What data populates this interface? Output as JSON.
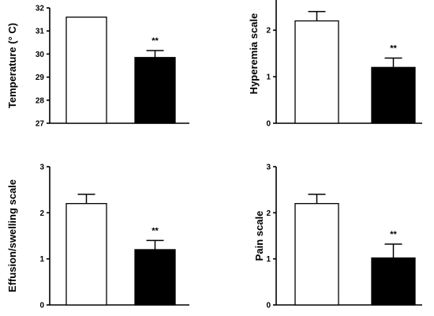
{
  "chart_data": [
    {
      "type": "bar",
      "ylabel": "Temperature (° C)",
      "ylim": [
        27,
        32
      ],
      "yticks": [
        "27",
        "28",
        "29",
        "30",
        "31",
        "32"
      ],
      "bars": [
        {
          "value": 31.6,
          "error": 0.0,
          "fill": "#ffffff",
          "sig": ""
        },
        {
          "value": 29.85,
          "error": 0.3,
          "fill": "#000000",
          "sig": "**"
        }
      ]
    },
    {
      "type": "bar",
      "ylabel": "Hyperemia scale",
      "ylim": [
        0,
        2.7
      ],
      "yticks": [
        "0",
        "1",
        "2"
      ],
      "bars": [
        {
          "value": 2.2,
          "error": 0.2,
          "fill": "#ffffff",
          "sig": ""
        },
        {
          "value": 1.2,
          "error": 0.2,
          "fill": "#000000",
          "sig": "**"
        }
      ]
    },
    {
      "type": "bar",
      "ylabel": "Effusion/swelling scale",
      "ylim": [
        0,
        3
      ],
      "yticks": [
        "0",
        "1",
        "2",
        "3"
      ],
      "bars": [
        {
          "value": 2.2,
          "error": 0.2,
          "fill": "#ffffff",
          "sig": ""
        },
        {
          "value": 1.2,
          "error": 0.2,
          "fill": "#000000",
          "sig": "**"
        }
      ]
    },
    {
      "type": "bar",
      "ylabel": "Pain scale",
      "ylim": [
        0,
        3
      ],
      "yticks": [
        "0",
        "1",
        "2",
        "3"
      ],
      "bars": [
        {
          "value": 2.2,
          "error": 0.2,
          "fill": "#ffffff",
          "sig": ""
        },
        {
          "value": 1.02,
          "error": 0.3,
          "fill": "#000000",
          "sig": "**"
        }
      ]
    }
  ]
}
